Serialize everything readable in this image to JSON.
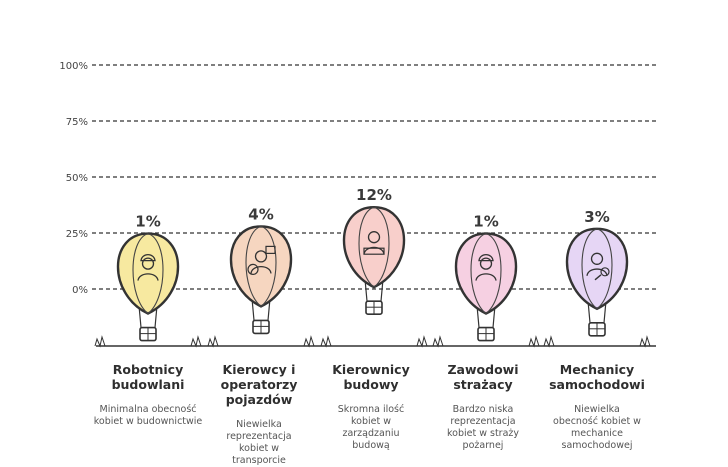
{
  "chart_data": {
    "type": "bar",
    "title": "",
    "xlabel": "",
    "ylabel": "",
    "ylim": [
      0,
      100
    ],
    "yticks": [
      "0%",
      "25%",
      "50%",
      "75%",
      "100%"
    ],
    "grid": true,
    "categories": [
      "Robotnicy budowlani",
      "Kierowcy i operatorzy pojazdów",
      "Kierownicy budowy",
      "Zawodowi strażacy",
      "Mechanicy samochodowi"
    ],
    "values": [
      1,
      4,
      12,
      1,
      3
    ],
    "data_labels": [
      "1%",
      "4%",
      "12%",
      "1%",
      "3%"
    ],
    "descriptions": [
      "Minimalna obecność kobiet w budownictwie",
      "Niewielka reprezentacja kobiet w transporcie",
      "Skromna ilość kobiet w zarządzaniu budową",
      "Bardzo niska reprezentacja kobiet w straży pożarnej",
      "Niewielka obecność kobiet w mechanice samochodowej"
    ],
    "icons": [
      "construction-worker-icon",
      "driver-icon",
      "manager-icon",
      "firefighter-icon",
      "mechanic-icon"
    ],
    "colors": [
      "#f7e9a0",
      "#f6d6c0",
      "#f8cfcb",
      "#f6d0e2",
      "#e6d6f5"
    ]
  },
  "columns": [
    {
      "title": "Robotnicy budowlani",
      "desc": "Minimalna obecność kobiet w budownictwie"
    },
    {
      "title": "Kierowcy i operatorzy pojazdów",
      "desc": "Niewielka reprezentacja kobiet w transporcie"
    },
    {
      "title": "Kierownicy budowy",
      "desc": "Skromna ilość kobiet w zarządzaniu budową"
    },
    {
      "title": "Zawodowi strażacy",
      "desc": "Bardzo niska reprezentacja kobiet w straży pożarnej"
    },
    {
      "title": "Mechanicy samochodowi",
      "desc": "Niewielka obecność kobiet w mechanice samochodowej"
    }
  ]
}
